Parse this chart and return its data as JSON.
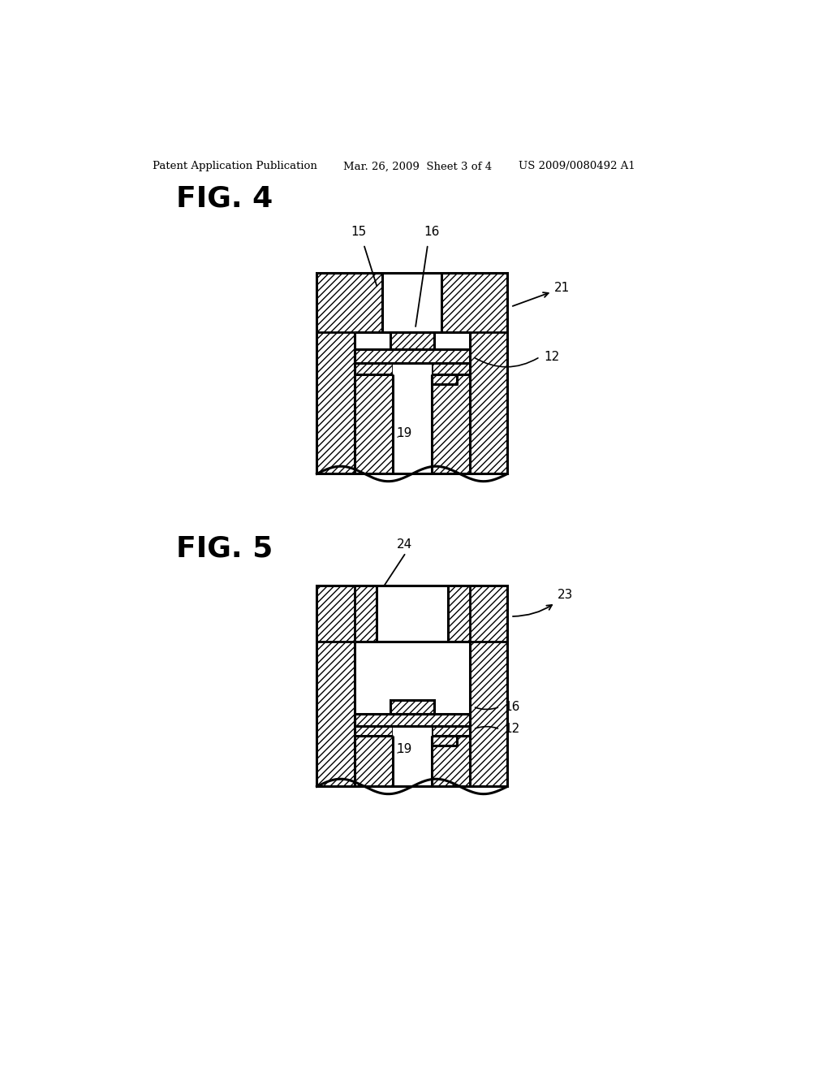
{
  "bg_color": "#ffffff",
  "header_left": "Patent Application Publication",
  "header_mid": "Mar. 26, 2009  Sheet 3 of 4",
  "header_right": "US 2009/0080492 A1",
  "fig4_title": "FIG. 4",
  "fig5_title": "FIG. 5"
}
